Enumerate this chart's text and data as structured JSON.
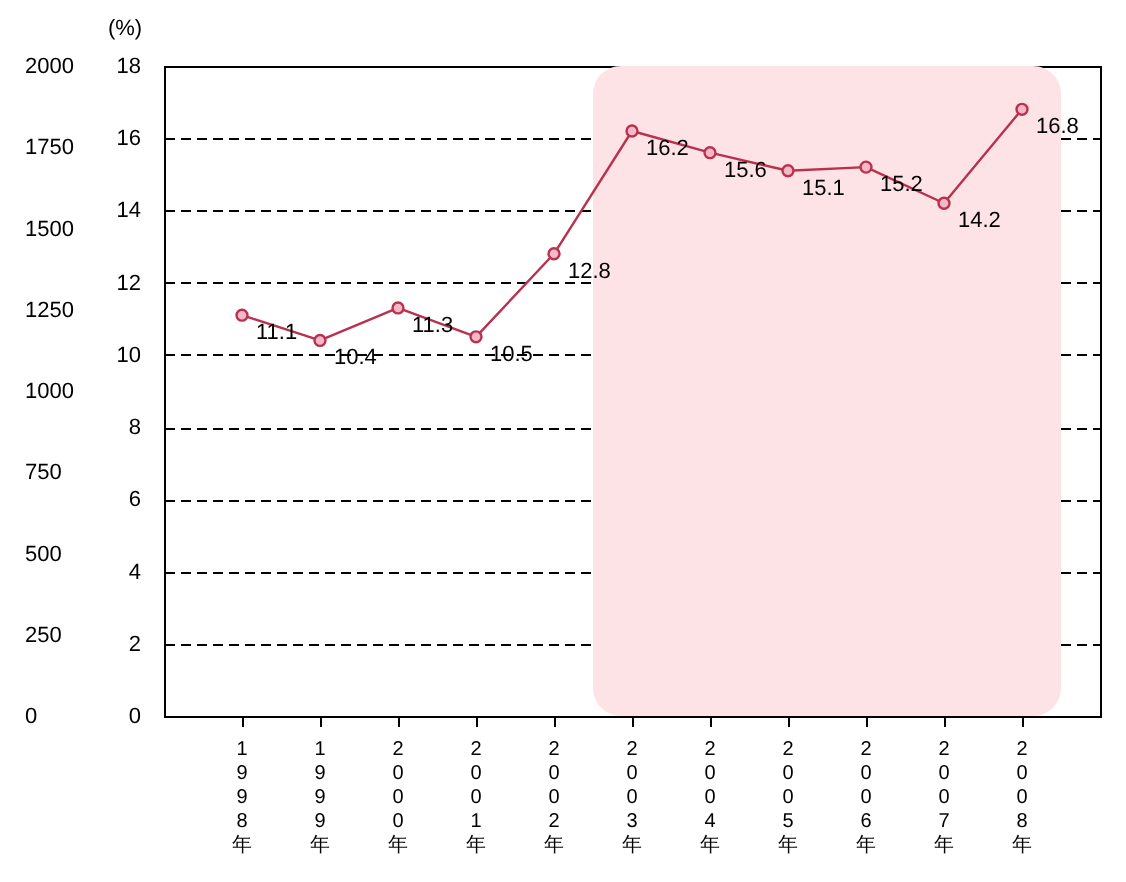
{
  "chart_data": {
    "type": "line",
    "ylabel": "(%)",
    "categories": [
      "1998年",
      "1999年",
      "2000年",
      "2001年",
      "2002年",
      "2003年",
      "2004年",
      "2005年",
      "2006年",
      "2007年",
      "2008年"
    ],
    "series": [
      {
        "color": "#b8324e",
        "values": [
          11.1,
          10.4,
          11.3,
          10.5,
          12.8,
          16.2,
          15.6,
          15.1,
          15.2,
          14.2,
          16.8
        ]
      }
    ],
    "ylim": [
      0,
      18
    ],
    "yticks": [
      0,
      2,
      4,
      6,
      8,
      10,
      12,
      14,
      16,
      18
    ],
    "y2lim": [
      0,
      2000
    ],
    "y2ticks": [
      0,
      250,
      500,
      750,
      1000,
      1250,
      1500,
      1750,
      2000
    ],
    "bands": [
      {
        "axis": "x",
        "from": "2003年",
        "to": "2008年",
        "color": "#fde3e6"
      }
    ],
    "grid": "y",
    "marker": "circle",
    "line_style": "solid",
    "data_labels": true
  }
}
